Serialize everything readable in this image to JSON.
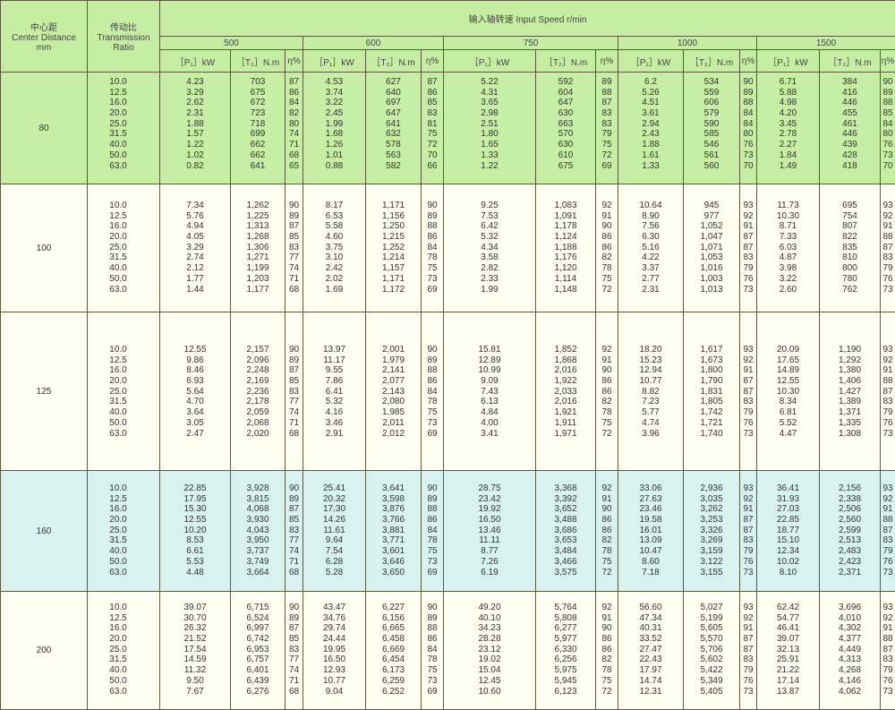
{
  "header": {
    "center_distance": [
      "中心距",
      "Center Distance",
      "mm"
    ],
    "ratio": [
      "传动比",
      "Transmission",
      "Ratio"
    ],
    "input_speed": "输入轴转速  Input Speed r/min",
    "speeds": [
      "500",
      "600",
      "750",
      "1000",
      "1500"
    ],
    "units": {
      "power": "［P₁］kW",
      "torque": "［T₂］N.m",
      "efficiency": "η%"
    }
  },
  "blocks": [
    {
      "center_distance": "80",
      "color": "#c7eea5",
      "rows": [
        [
          "10.0",
          "4.23",
          "703",
          "87",
          "4.53",
          "627",
          "87",
          "5.22",
          "592",
          "89",
          "6.2",
          "534",
          "90",
          "6.71",
          "384",
          "90"
        ],
        [
          "12.5",
          "3.29",
          "675",
          "86",
          "3.74",
          "640",
          "86",
          "4.31",
          "604",
          "88",
          "5.26",
          "559",
          "89",
          "5.88",
          "416",
          "89"
        ],
        [
          "16.0",
          "2.62",
          "672",
          "84",
          "3.22",
          "697",
          "85",
          "3.65",
          "647",
          "87",
          "4.51",
          "606",
          "88",
          "4.98",
          "446",
          "88"
        ],
        [
          "20.0",
          "2.31",
          "723",
          "82",
          "2.45",
          "647",
          "83",
          "2.98",
          "630",
          "83",
          "3.61",
          "579",
          "84",
          "4.20",
          "455",
          "85"
        ],
        [
          "25.0",
          "1.88",
          "718",
          "80",
          "1.99",
          "641",
          "81",
          "2.51",
          "663",
          "83",
          "2.94",
          "590",
          "84",
          "3.45",
          "461",
          "84"
        ],
        [
          "31.5",
          "1.57",
          "699",
          "74",
          "1.68",
          "632",
          "75",
          "1.80",
          "570",
          "79",
          "2.43",
          "585",
          "80",
          "2.78",
          "446",
          "80"
        ],
        [
          "40.0",
          "1.22",
          "662",
          "71",
          "1.26",
          "578",
          "72",
          "1.65",
          "630",
          "75",
          "1.88",
          "546",
          "76",
          "2.27",
          "439",
          "76"
        ],
        [
          "50.0",
          "1.02",
          "662",
          "68",
          "1.01",
          "563",
          "70",
          "1.33",
          "610",
          "72",
          "1.61",
          "561",
          "73",
          "1.84",
          "428",
          "73"
        ],
        [
          "63.0",
          "0.82",
          "641",
          "65",
          "0.88",
          "582",
          "66",
          "1.22",
          "675",
          "69",
          "1.33",
          "560",
          "70",
          "1.49",
          "418",
          "70"
        ]
      ]
    },
    {
      "center_distance": "100",
      "color": "#fdfdf0",
      "rows": [
        [
          "10.0",
          "7.34",
          "1,262",
          "90",
          "8.17",
          "1,171",
          "90",
          "9.25",
          "1,083",
          "92",
          "10.64",
          "945",
          "93",
          "11.73",
          "695",
          "93"
        ],
        [
          "12.5",
          "5.76",
          "1,225",
          "89",
          "6.53",
          "1,156",
          "89",
          "7.53",
          "1,091",
          "91",
          "8.90",
          "977",
          "92",
          "10.30",
          "754",
          "92"
        ],
        [
          "16.0",
          "4.94",
          "1,313",
          "87",
          "5.58",
          "1,250",
          "88",
          "6.42",
          "1,178",
          "90",
          "7.56",
          "1,052",
          "91",
          "8.71",
          "807",
          "91"
        ],
        [
          "20.0",
          "4.05",
          "1,268",
          "85",
          "4.60",
          "1,215",
          "86",
          "5.32",
          "1,124",
          "86",
          "6.30",
          "1,047",
          "87",
          "7.33",
          "822",
          "88"
        ],
        [
          "25.0",
          "3.29",
          "1,306",
          "83",
          "3.75",
          "1,252",
          "84",
          "4.34",
          "1,188",
          "86",
          "5.16",
          "1,071",
          "87",
          "6.03",
          "835",
          "87"
        ],
        [
          "31.5",
          "2.74",
          "1,271",
          "77",
          "3.10",
          "1,214",
          "78",
          "3.58",
          "1,176",
          "82",
          "4.22",
          "1,053",
          "83",
          "4.87",
          "810",
          "83"
        ],
        [
          "40.0",
          "2.12",
          "1,199",
          "74",
          "2.42",
          "1,157",
          "75",
          "2.82",
          "1,120",
          "78",
          "3.37",
          "1,016",
          "79",
          "3.98",
          "800",
          "79"
        ],
        [
          "50.0",
          "1.77",
          "1,203",
          "71",
          "2.02",
          "1,171",
          "73",
          "2.33",
          "1,114",
          "75",
          "2.77",
          "1,003",
          "76",
          "3.22",
          "780",
          "76"
        ],
        [
          "63.0",
          "1.44",
          "1,177",
          "68",
          "1.69",
          "1,172",
          "69",
          "1.99",
          "1,148",
          "72",
          "2.31",
          "1,013",
          "73",
          "2.60",
          "762",
          "73"
        ]
      ]
    },
    {
      "center_distance": "125",
      "color": "#fdfdf0",
      "rows": [
        [
          "10.0",
          "12.55",
          "2,157",
          "90",
          "13.97",
          "2,001",
          "90",
          "15.81",
          "1,852",
          "92",
          "18.20",
          "1,617",
          "93",
          "20.09",
          "1,190",
          "93"
        ],
        [
          "12.5",
          "9.86",
          "2,096",
          "89",
          "11.17",
          "1,979",
          "89",
          "12.89",
          "1,868",
          "91",
          "15.23",
          "1,673",
          "92",
          "17.65",
          "1,292",
          "92"
        ],
        [
          "16.0",
          "8.46",
          "2,248",
          "87",
          "9.55",
          "2,141",
          "88",
          "10.99",
          "2,016",
          "90",
          "12.94",
          "1,800",
          "91",
          "14.89",
          "1,380",
          "91"
        ],
        [
          "20.0",
          "6.93",
          "2,169",
          "85",
          "7.86",
          "2,077",
          "86",
          "9.09",
          "1,922",
          "86",
          "10.77",
          "1,790",
          "87",
          "12.55",
          "1,406",
          "88"
        ],
        [
          "25.0",
          "5.64",
          "2,236",
          "83",
          "6.41",
          "2,143",
          "84",
          "7.43",
          "2,033",
          "86",
          "8.82",
          "1,831",
          "87",
          "10.30",
          "1,427",
          "87"
        ],
        [
          "31.5",
          "4.70",
          "2,178",
          "77",
          "5.32",
          "2,080",
          "78",
          "6.13",
          "2,016",
          "82",
          "7.23",
          "1,805",
          "83",
          "8.34",
          "1,389",
          "83"
        ],
        [
          "40.0",
          "3.64",
          "2,059",
          "74",
          "4.16",
          "1,985",
          "75",
          "4.84",
          "1,921",
          "78",
          "5.77",
          "1,742",
          "79",
          "6.81",
          "1,371",
          "79"
        ],
        [
          "50.0",
          "3.05",
          "2,068",
          "71",
          "3.46",
          "2,011",
          "73",
          "4.00",
          "1,911",
          "75",
          "4.74",
          "1,721",
          "76",
          "5.52",
          "1,335",
          "76"
        ],
        [
          "63.0",
          "2.47",
          "2,020",
          "68",
          "2.91",
          "2,012",
          "69",
          "3.41",
          "1,971",
          "72",
          "3.96",
          "1,740",
          "73",
          "4.47",
          "1,308",
          "73"
        ]
      ]
    },
    {
      "center_distance": "160",
      "color": "#d8f2f1",
      "rows": [
        [
          "10.0",
          "22.85",
          "3,928",
          "90",
          "25.41",
          "3,641",
          "90",
          "28.75",
          "3,368",
          "92",
          "33.06",
          "2,936",
          "93",
          "36.41",
          "2,156",
          "93"
        ],
        [
          "12.5",
          "17.95",
          "3,815",
          "89",
          "20.32",
          "3,598",
          "89",
          "23.42",
          "3,392",
          "91",
          "27.63",
          "3,035",
          "92",
          "31.93",
          "2,338",
          "92"
        ],
        [
          "16.0",
          "15.30",
          "4,068",
          "87",
          "17.30",
          "3,876",
          "88",
          "19.92",
          "3,652",
          "90",
          "23.46",
          "3,262",
          "91",
          "27.03",
          "2,506",
          "91"
        ],
        [
          "20.0",
          "12.55",
          "3,930",
          "85",
          "14.26",
          "3,766",
          "86",
          "16.50",
          "3,488",
          "86",
          "19.58",
          "3,253",
          "87",
          "22.85",
          "2,560",
          "88"
        ],
        [
          "25.0",
          "10.20",
          "4,043",
          "83",
          "11.61",
          "3,881",
          "84",
          "13.46",
          "3,686",
          "86",
          "16.01",
          "3,326",
          "87",
          "18.77",
          "2,599",
          "87"
        ],
        [
          "31.5",
          "8.53",
          "3,950",
          "77",
          "9.64",
          "3,771",
          "78",
          "11.11",
          "3,653",
          "82",
          "13.09",
          "3,269",
          "83",
          "15.10",
          "2,513",
          "83"
        ],
        [
          "40.0",
          "6.61",
          "3,737",
          "74",
          "7.54",
          "3,601",
          "75",
          "8.77",
          "3,484",
          "78",
          "10.47",
          "3,159",
          "79",
          "12.34",
          "2,483",
          "79"
        ],
        [
          "50.0",
          "5.53",
          "3,749",
          "71",
          "6.28",
          "3,646",
          "73",
          "7.26",
          "3,466",
          "75",
          "8.60",
          "3,122",
          "76",
          "10.02",
          "2,423",
          "76"
        ],
        [
          "63.0",
          "4.48",
          "3,664",
          "68",
          "5.28",
          "3,650",
          "69",
          "6.19",
          "3,575",
          "72",
          "7.18",
          "3,155",
          "73",
          "8.10",
          "2,371",
          "73"
        ]
      ]
    },
    {
      "center_distance": "200",
      "color": "#fdfdf0",
      "rows": [
        [
          "10.0",
          "39.07",
          "6,715",
          "90",
          "43.47",
          "6,227",
          "90",
          "49.20",
          "5,764",
          "92",
          "56.60",
          "5,027",
          "93",
          "62.42",
          "3,696",
          "93"
        ],
        [
          "12.5",
          "30.70",
          "6,524",
          "89",
          "34.76",
          "6,156",
          "89",
          "40.10",
          "5,808",
          "91",
          "47.34",
          "5,199",
          "92",
          "54.77",
          "4,010",
          "92"
        ],
        [
          "16.0",
          "26.32",
          "6,997",
          "87",
          "29.74",
          "6,665",
          "88",
          "34.23",
          "6,277",
          "90",
          "40.31",
          "5,605",
          "91",
          "46.41",
          "4,302",
          "91"
        ],
        [
          "20.0",
          "21.52",
          "6,742",
          "85",
          "24.44",
          "6,458",
          "86",
          "28.28",
          "5,977",
          "86",
          "33.52",
          "5,570",
          "87",
          "39.07",
          "4,377",
          "88"
        ],
        [
          "25.0",
          "17.54",
          "6,953",
          "83",
          "19.95",
          "6,669",
          "84",
          "23.12",
          "6,330",
          "86",
          "27.47",
          "5,706",
          "87",
          "32.13",
          "4,449",
          "87"
        ],
        [
          "31.5",
          "14.59",
          "6,757",
          "77",
          "16.50",
          "6,454",
          "78",
          "19.02",
          "6,256",
          "82",
          "22.43",
          "5,602",
          "83",
          "25.91",
          "4,313",
          "83"
        ],
        [
          "40.0",
          "11.32",
          "6,401",
          "74",
          "12.93",
          "6,173",
          "75",
          "15.04",
          "5,975",
          "78",
          "17.97",
          "5,422",
          "79",
          "21.22",
          "4,268",
          "79"
        ],
        [
          "50.0",
          "9.50",
          "6,439",
          "71",
          "10.77",
          "6,259",
          "73",
          "12.45",
          "5,945",
          "75",
          "14.74",
          "5,349",
          "76",
          "17.14",
          "4,146",
          "76"
        ],
        [
          "63.0",
          "7.67",
          "6,276",
          "68",
          "9.04",
          "6,252",
          "69",
          "10.60",
          "6,123",
          "72",
          "12.31",
          "5,405",
          "73",
          "13.87",
          "4,062",
          "73"
        ]
      ]
    }
  ]
}
